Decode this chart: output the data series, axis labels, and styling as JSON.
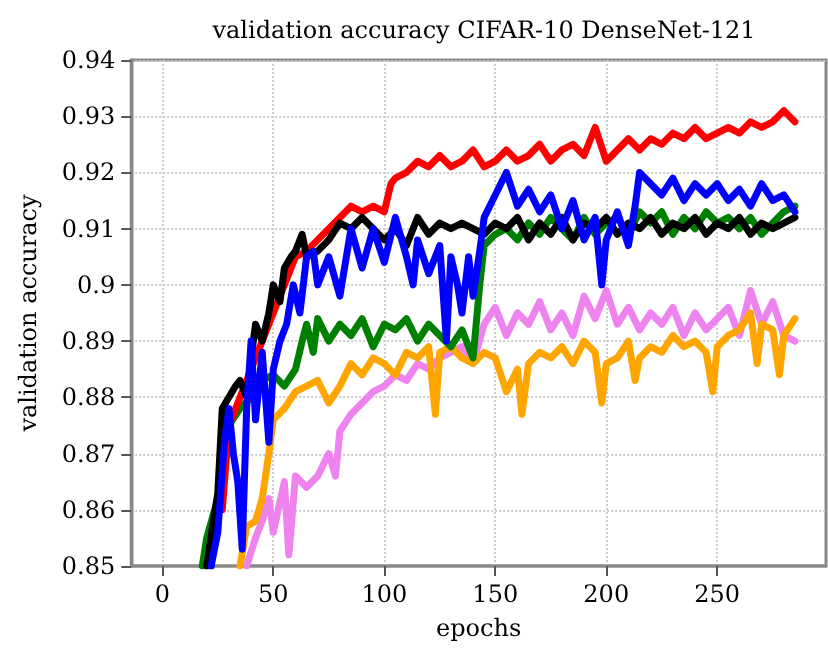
{
  "chart_data": {
    "type": "line",
    "title": "validation accuracy CIFAR-10 DenseNet-121",
    "xlabel": "epochs",
    "ylabel": "validation accuracy",
    "xlim": [
      -14,
      299
    ],
    "xticks": [
      0,
      50,
      100,
      150,
      200,
      250
    ],
    "ylim": [
      0.85,
      0.94
    ],
    "yticks": [
      0.85,
      0.86,
      0.87,
      0.88,
      0.89,
      0.9,
      0.91,
      0.92,
      0.93,
      0.94
    ],
    "grid": true,
    "marker": "none",
    "line_style": "solid",
    "series": [
      {
        "color": "#ee82ee",
        "x": [
          38,
          42,
          45,
          48,
          50,
          55,
          57,
          60,
          65,
          70,
          75,
          78,
          80,
          85,
          90,
          95,
          100,
          105,
          110,
          115,
          120,
          125,
          130,
          135,
          140,
          145,
          150,
          155,
          160,
          165,
          170,
          175,
          180,
          185,
          190,
          195,
          200,
          205,
          210,
          215,
          220,
          225,
          230,
          235,
          240,
          245,
          250,
          255,
          260,
          265,
          270,
          275,
          280,
          285
        ],
        "values": [
          0.85,
          0.855,
          0.858,
          0.862,
          0.856,
          0.865,
          0.852,
          0.866,
          0.864,
          0.866,
          0.87,
          0.866,
          0.874,
          0.877,
          0.879,
          0.881,
          0.882,
          0.884,
          0.883,
          0.886,
          0.885,
          0.887,
          0.888,
          0.889,
          0.886,
          0.893,
          0.896,
          0.891,
          0.895,
          0.893,
          0.897,
          0.892,
          0.895,
          0.891,
          0.898,
          0.894,
          0.899,
          0.893,
          0.896,
          0.892,
          0.895,
          0.893,
          0.896,
          0.891,
          0.895,
          0.892,
          0.894,
          0.896,
          0.891,
          0.899,
          0.893,
          0.897,
          0.891,
          0.89
        ]
      },
      {
        "color": "#ffa500",
        "x": [
          35,
          38,
          42,
          45,
          48,
          50,
          55,
          60,
          65,
          70,
          75,
          80,
          85,
          90,
          95,
          100,
          105,
          110,
          115,
          120,
          123,
          125,
          130,
          135,
          140,
          145,
          150,
          155,
          160,
          162,
          165,
          170,
          175,
          180,
          185,
          190,
          195,
          198,
          200,
          205,
          210,
          213,
          215,
          220,
          225,
          230,
          235,
          240,
          245,
          248,
          250,
          255,
          260,
          265,
          268,
          270,
          275,
          278,
          280,
          285
        ],
        "values": [
          0.85,
          0.857,
          0.858,
          0.862,
          0.87,
          0.876,
          0.878,
          0.881,
          0.882,
          0.883,
          0.879,
          0.882,
          0.886,
          0.884,
          0.887,
          0.886,
          0.884,
          0.888,
          0.887,
          0.889,
          0.877,
          0.888,
          0.889,
          0.887,
          0.886,
          0.888,
          0.887,
          0.881,
          0.885,
          0.877,
          0.886,
          0.888,
          0.887,
          0.889,
          0.886,
          0.89,
          0.888,
          0.879,
          0.886,
          0.887,
          0.89,
          0.883,
          0.887,
          0.889,
          0.888,
          0.891,
          0.889,
          0.89,
          0.888,
          0.881,
          0.889,
          0.891,
          0.892,
          0.895,
          0.886,
          0.893,
          0.892,
          0.884,
          0.891,
          0.894
        ]
      },
      {
        "color": "#008000",
        "x": [
          18,
          20,
          25,
          30,
          35,
          40,
          45,
          50,
          55,
          60,
          63,
          65,
          68,
          70,
          75,
          80,
          85,
          90,
          95,
          100,
          105,
          110,
          115,
          120,
          125,
          130,
          135,
          140,
          143,
          145,
          150,
          155,
          160,
          165,
          170,
          175,
          180,
          185,
          190,
          195,
          200,
          205,
          210,
          215,
          220,
          225,
          230,
          235,
          240,
          245,
          250,
          255,
          260,
          265,
          270,
          275,
          280,
          285
        ],
        "values": [
          0.85,
          0.855,
          0.862,
          0.875,
          0.878,
          0.88,
          0.883,
          0.884,
          0.882,
          0.885,
          0.89,
          0.893,
          0.888,
          0.894,
          0.89,
          0.893,
          0.891,
          0.894,
          0.889,
          0.893,
          0.892,
          0.894,
          0.89,
          0.893,
          0.891,
          0.889,
          0.892,
          0.887,
          0.9,
          0.907,
          0.909,
          0.91,
          0.908,
          0.911,
          0.909,
          0.912,
          0.91,
          0.908,
          0.912,
          0.909,
          0.911,
          0.912,
          0.909,
          0.913,
          0.911,
          0.913,
          0.909,
          0.912,
          0.91,
          0.913,
          0.911,
          0.912,
          0.91,
          0.912,
          0.909,
          0.911,
          0.913,
          0.914
        ]
      },
      {
        "color": "#ff0000",
        "x": [
          27,
          30,
          40,
          45,
          50,
          55,
          60,
          65,
          70,
          75,
          80,
          85,
          90,
          95,
          100,
          103,
          105,
          110,
          115,
          120,
          125,
          130,
          135,
          140,
          145,
          150,
          155,
          160,
          165,
          170,
          175,
          180,
          185,
          190,
          195,
          200,
          205,
          210,
          215,
          220,
          225,
          230,
          235,
          240,
          245,
          250,
          255,
          260,
          265,
          270,
          275,
          280,
          285
        ],
        "values": [
          0.86,
          0.875,
          0.885,
          0.89,
          0.895,
          0.9,
          0.905,
          0.906,
          0.908,
          0.91,
          0.912,
          0.914,
          0.913,
          0.914,
          0.913,
          0.918,
          0.919,
          0.92,
          0.922,
          0.921,
          0.923,
          0.921,
          0.922,
          0.924,
          0.921,
          0.922,
          0.924,
          0.922,
          0.923,
          0.925,
          0.922,
          0.924,
          0.925,
          0.923,
          0.928,
          0.922,
          0.924,
          0.926,
          0.924,
          0.926,
          0.925,
          0.927,
          0.926,
          0.928,
          0.926,
          0.927,
          0.928,
          0.927,
          0.929,
          0.928,
          0.929,
          0.931,
          0.929
        ]
      },
      {
        "color": "#000000",
        "x": [
          20,
          25,
          27,
          30,
          33,
          35,
          38,
          40,
          42,
          45,
          48,
          50,
          53,
          55,
          58,
          60,
          63,
          65,
          70,
          75,
          80,
          85,
          90,
          95,
          100,
          105,
          110,
          115,
          120,
          125,
          130,
          135,
          140,
          145,
          150,
          155,
          160,
          165,
          170,
          175,
          180,
          185,
          190,
          195,
          200,
          205,
          210,
          215,
          220,
          225,
          230,
          235,
          240,
          245,
          250,
          255,
          260,
          265,
          270,
          275,
          280,
          285
        ],
        "values": [
          0.85,
          0.863,
          0.878,
          0.88,
          0.882,
          0.883,
          0.88,
          0.887,
          0.893,
          0.89,
          0.895,
          0.9,
          0.897,
          0.903,
          0.905,
          0.906,
          0.909,
          0.905,
          0.906,
          0.908,
          0.911,
          0.91,
          0.912,
          0.91,
          0.908,
          0.91,
          0.907,
          0.912,
          0.909,
          0.911,
          0.91,
          0.911,
          0.91,
          0.909,
          0.911,
          0.91,
          0.912,
          0.908,
          0.911,
          0.909,
          0.912,
          0.908,
          0.911,
          0.91,
          0.912,
          0.909,
          0.911,
          0.91,
          0.912,
          0.909,
          0.911,
          0.91,
          0.912,
          0.909,
          0.911,
          0.91,
          0.912,
          0.909,
          0.911,
          0.91,
          0.911,
          0.912
        ]
      },
      {
        "color": "#0000ff",
        "x": [
          22,
          25,
          28,
          30,
          32,
          34,
          36,
          38,
          40,
          42,
          45,
          48,
          50,
          53,
          56,
          59,
          62,
          65,
          68,
          70,
          75,
          80,
          85,
          90,
          95,
          100,
          105,
          110,
          113,
          115,
          120,
          125,
          128,
          130,
          133,
          135,
          138,
          140,
          143,
          145,
          150,
          155,
          160,
          165,
          170,
          175,
          180,
          185,
          190,
          195,
          198,
          200,
          205,
          210,
          213,
          215,
          220,
          225,
          230,
          235,
          240,
          245,
          250,
          255,
          260,
          265,
          270,
          275,
          280,
          285
        ],
        "values": [
          0.85,
          0.856,
          0.872,
          0.878,
          0.87,
          0.865,
          0.853,
          0.878,
          0.89,
          0.876,
          0.888,
          0.872,
          0.885,
          0.89,
          0.893,
          0.9,
          0.895,
          0.905,
          0.906,
          0.9,
          0.905,
          0.898,
          0.91,
          0.903,
          0.91,
          0.904,
          0.912,
          0.905,
          0.9,
          0.908,
          0.902,
          0.907,
          0.89,
          0.905,
          0.9,
          0.895,
          0.905,
          0.898,
          0.906,
          0.912,
          0.916,
          0.92,
          0.914,
          0.917,
          0.913,
          0.916,
          0.91,
          0.915,
          0.908,
          0.912,
          0.9,
          0.908,
          0.913,
          0.907,
          0.914,
          0.92,
          0.918,
          0.916,
          0.919,
          0.915,
          0.918,
          0.916,
          0.918,
          0.915,
          0.917,
          0.914,
          0.918,
          0.915,
          0.916,
          0.913
        ]
      }
    ]
  }
}
